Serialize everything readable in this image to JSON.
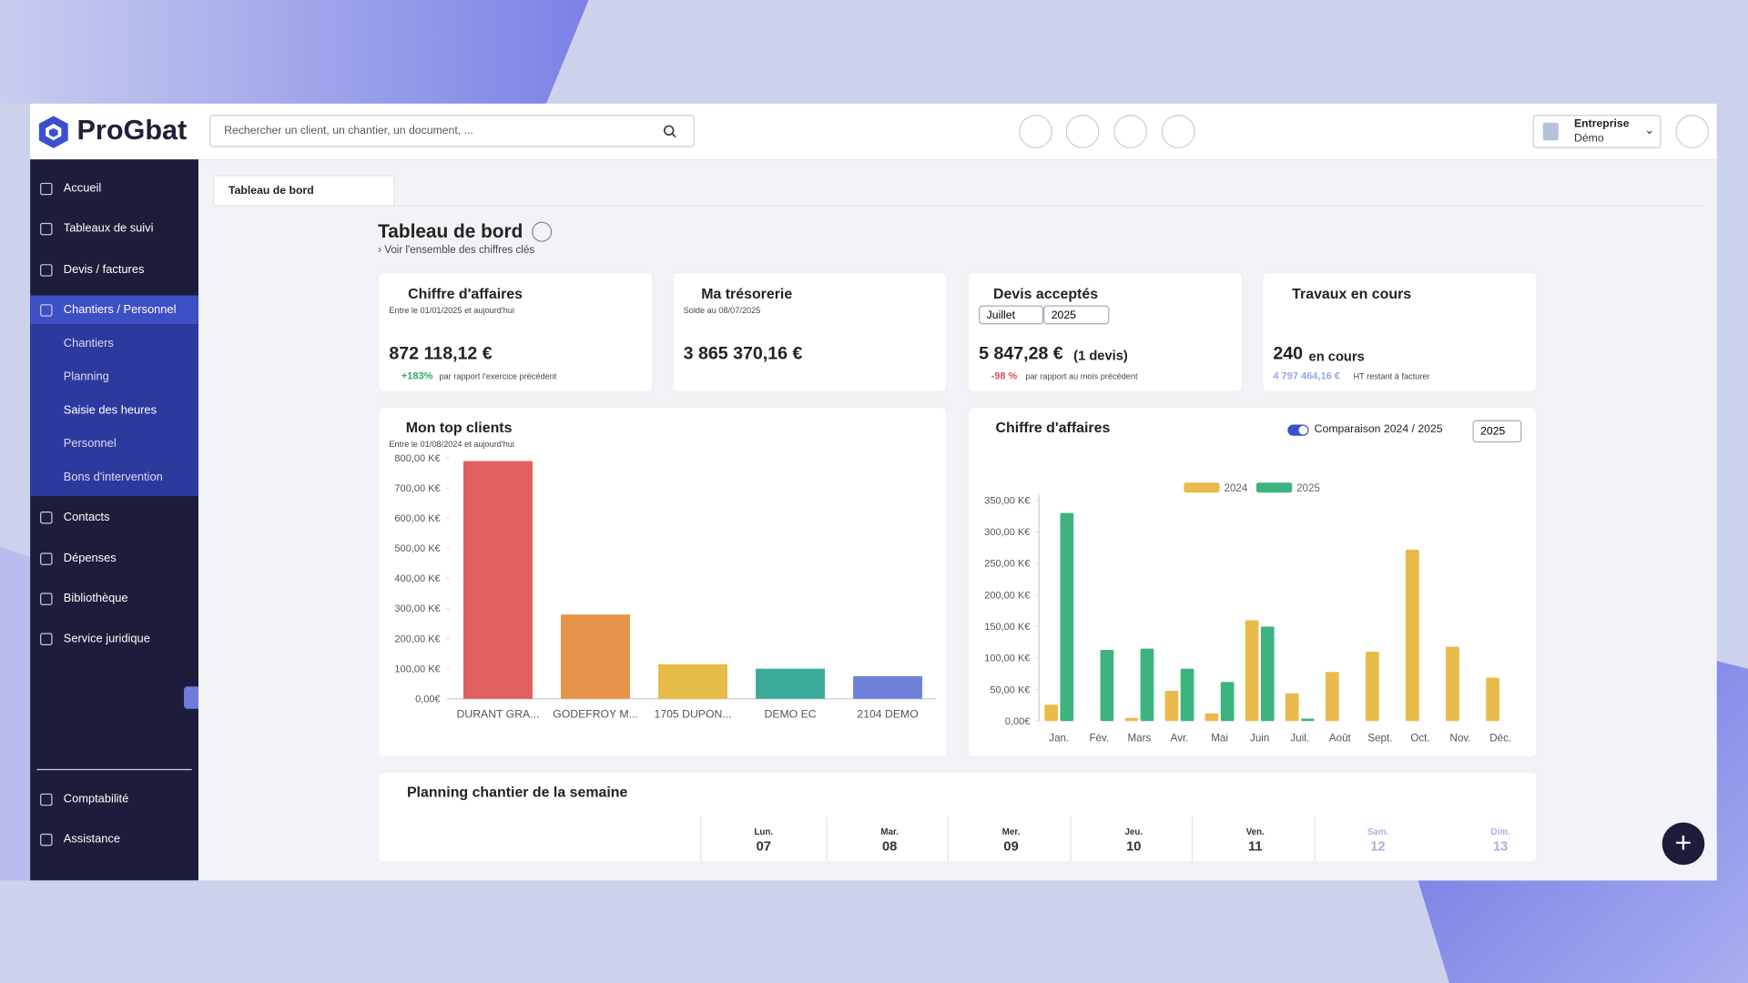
{
  "header": {
    "logo": "ProGbat",
    "search_placeholder": "Rechercher un client, un chantier, un document, ...",
    "company": "Entreprise",
    "company_sub": "Démo"
  },
  "sidebar": {
    "main": [
      "Accueil",
      "Tableaux de suivi",
      "Devis / factures",
      "Chantiers / Personnel"
    ],
    "sub": [
      "Chantiers",
      "Planning",
      "Saisie des heures",
      "Personnel",
      "Bons d'intervention"
    ],
    "more": [
      "Contacts",
      "Dépenses",
      "Bibliothèque",
      "Service juridique"
    ],
    "bottom": [
      "Comptabilité",
      "Assistance"
    ]
  },
  "tab": "Tableau de bord",
  "page": {
    "title": "Tableau de bord",
    "subtitle": "› Voir l'ensemble des chiffres clés"
  },
  "kpis": [
    {
      "title": "Chiffre d'affaires",
      "subtitle": "Entre le 01/01/2025 et aujourd'hui",
      "value": "872 118,12 €",
      "change": "+183%",
      "change_text": "par rapport l'exercice précédent"
    },
    {
      "title": "Ma trésorerie",
      "subtitle": "Solde au 08/07/2025",
      "value": "3 865 370,16 €"
    },
    {
      "title": "Devis acceptés",
      "month": "Juillet",
      "year": "2025",
      "value": "5 847,28 €",
      "count": "(1 devis)",
      "change": "-98 %",
      "change_text": "par rapport au mois précédent"
    },
    {
      "title": "Travaux en cours",
      "value": "240",
      "value_text": "en cours",
      "amount": "4 797 464,16 €",
      "amount_text": "HT restant à facturer"
    }
  ],
  "chart_data": [
    {
      "type": "bar",
      "title": "Mon top clients",
      "subtitle": "Entre le 01/08/2024 et aujourd'hui",
      "categories": [
        "DURANT GRA...",
        "GODEFROY M...",
        "1705 DUPON...",
        "DEMO EC",
        "2104 DEMO"
      ],
      "values": [
        790,
        280,
        115,
        100,
        75
      ],
      "colors": [
        "#e0605d",
        "#e6944a",
        "#e6bb48",
        "#3aab9b",
        "#6f80d8"
      ],
      "ylim": [
        0,
        800
      ],
      "yticks": [
        {
          "value": 0,
          "label": "0,00€"
        },
        {
          "value": 100,
          "label": "100,00 K€"
        },
        {
          "value": 200,
          "label": "200,00 K€"
        },
        {
          "value": 300,
          "label": "300,00 K€"
        },
        {
          "value": 400,
          "label": "400,00 K€"
        },
        {
          "value": 500,
          "label": "500,00 K€"
        },
        {
          "value": 600,
          "label": "600,00 K€"
        },
        {
          "value": 700,
          "label": "700,00 K€"
        },
        {
          "value": 800,
          "label": "800,00 K€"
        }
      ],
      "grid": false
    },
    {
      "type": "grouped_bar",
      "title": "Chiffre d'affaires",
      "toggle": "Comparaison 2024 / 2025",
      "year_select": "2025",
      "categories": [
        "Jan.",
        "Fév.",
        "Mars",
        "Avr.",
        "Mai",
        "Juin",
        "Juil.",
        "Août",
        "Sept.",
        "Oct.",
        "Nov.",
        "Déc."
      ],
      "series": [
        {
          "name": "2024",
          "color": "#e8bb4a",
          "values": [
            26,
            0,
            5,
            48,
            12,
            160,
            44,
            78,
            110,
            272,
            118,
            69
          ]
        },
        {
          "name": "2025",
          "color": "#3db37f",
          "values": [
            330,
            113,
            115,
            83,
            62,
            150,
            4,
            null,
            null,
            null,
            null,
            null
          ]
        }
      ],
      "ylim": [
        0,
        350
      ],
      "yticks": [
        {
          "value": 0,
          "label": "0,00€"
        },
        {
          "value": 50,
          "label": "50,00 K€"
        },
        {
          "value": 100,
          "label": "100,00 K€"
        },
        {
          "value": 150,
          "label": "150,00 K€"
        },
        {
          "value": 200,
          "label": "200,00 K€"
        },
        {
          "value": 250,
          "label": "250,00 K€"
        },
        {
          "value": 300,
          "label": "300,00 K€"
        },
        {
          "value": 350,
          "label": "350,00 K€"
        }
      ],
      "legend": "top",
      "grid": false
    }
  ],
  "planning": {
    "title": "Planning chantier de la semaine",
    "days": [
      {
        "day": "Lun.",
        "date": "07"
      },
      {
        "day": "Mar.",
        "date": "08"
      },
      {
        "day": "Mer.",
        "date": "09"
      },
      {
        "day": "Jeu.",
        "date": "10"
      },
      {
        "day": "Ven.",
        "date": "11"
      },
      {
        "day": "Sam.",
        "date": "12"
      },
      {
        "day": "Dim.",
        "date": "13"
      }
    ]
  }
}
